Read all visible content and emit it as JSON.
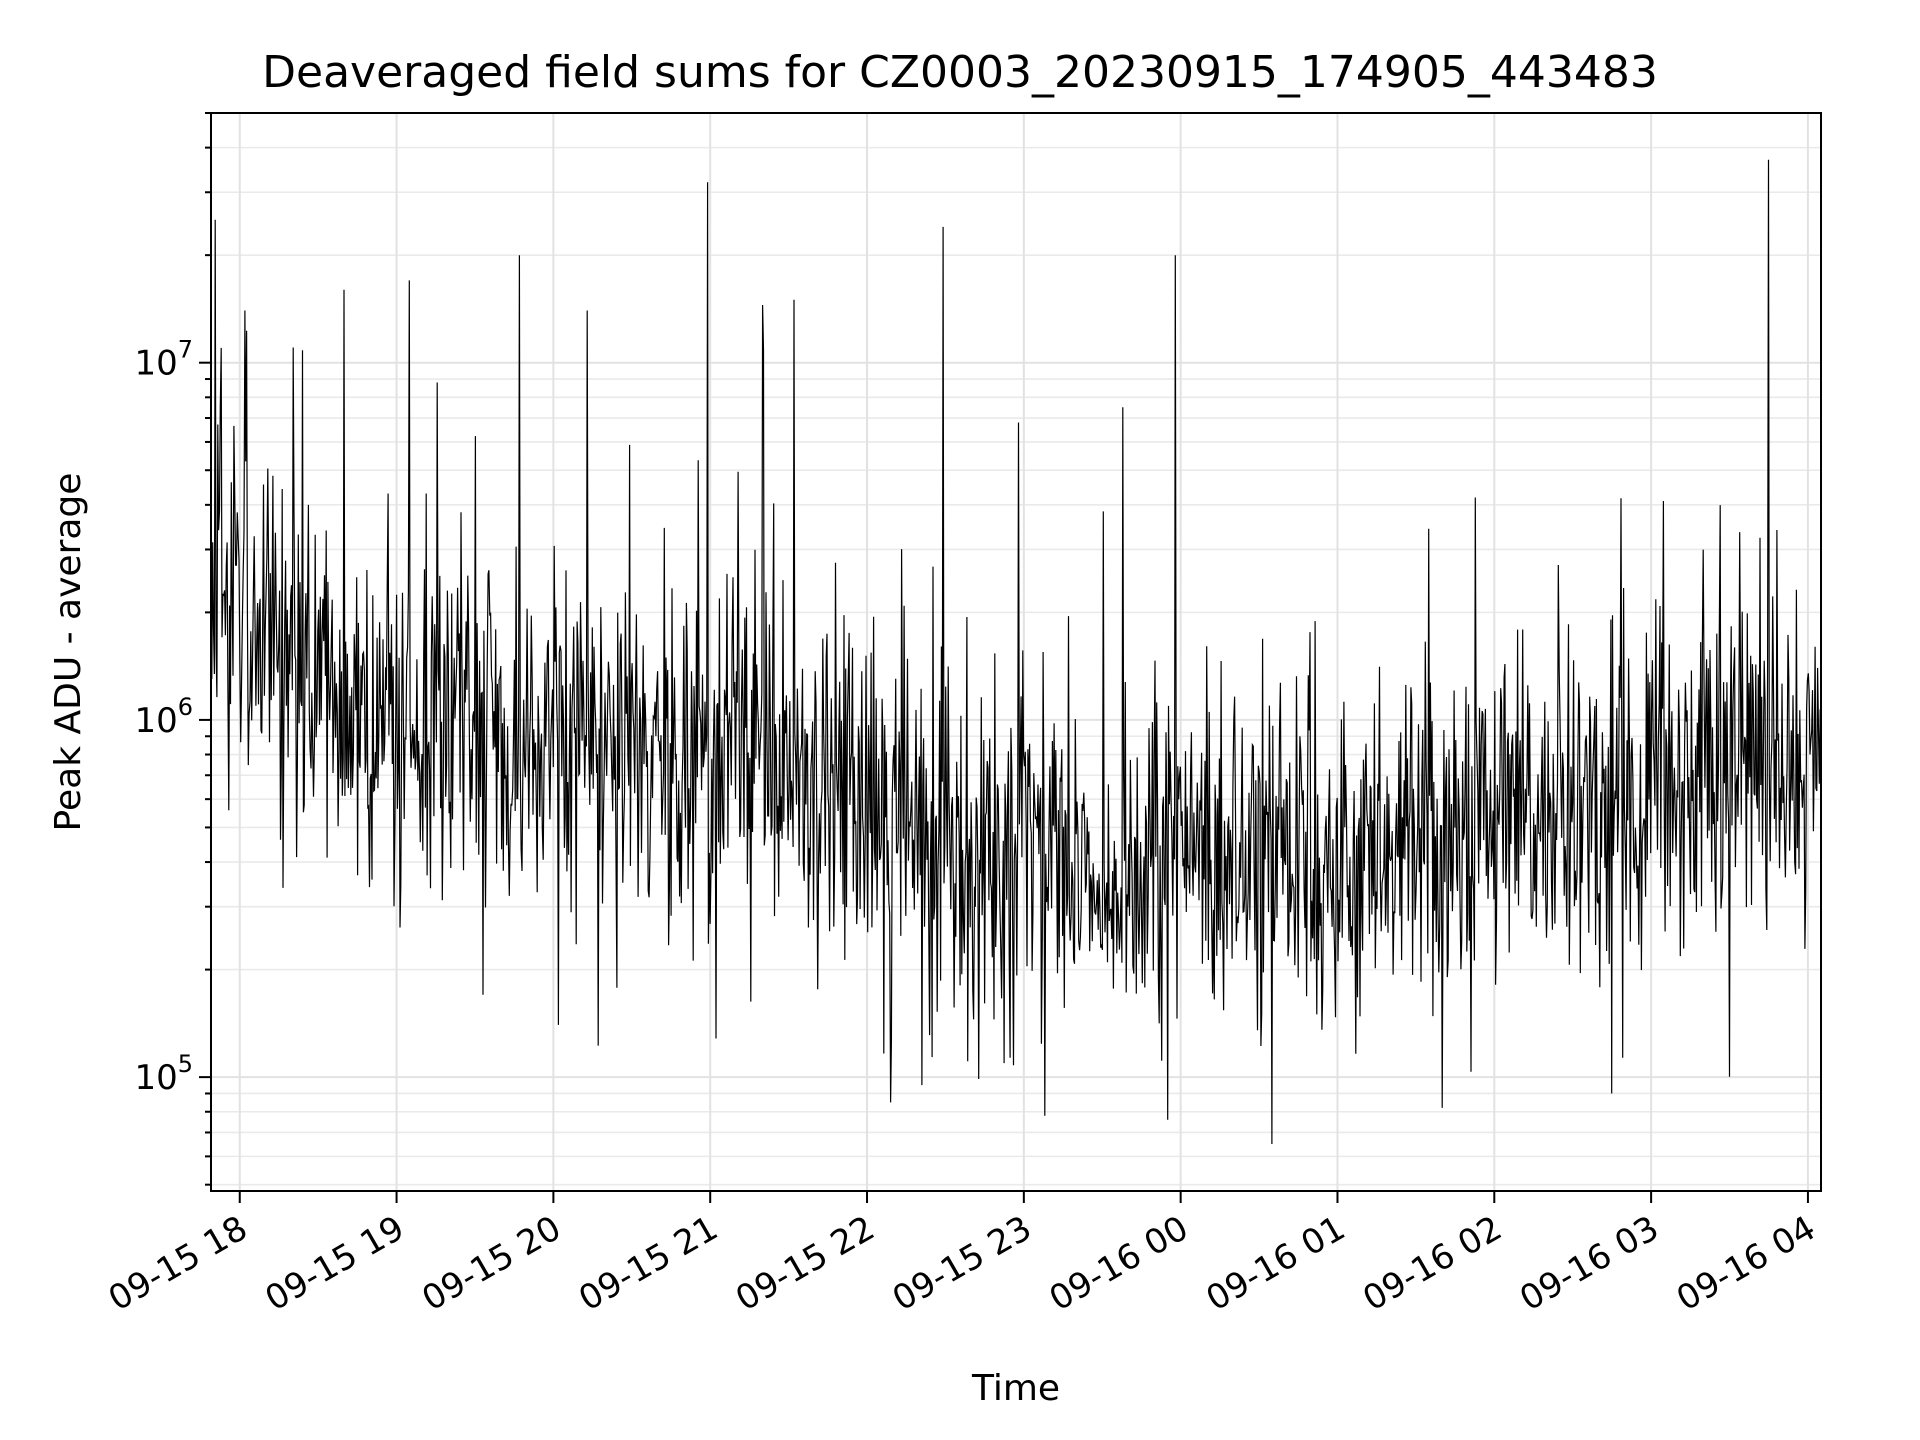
{
  "chart_data": {
    "type": "line",
    "title": "Deaveraged field sums for CZ0003_20230915_174905_443483",
    "xlabel": "Time",
    "ylabel": "Peak ADU - average",
    "yscale": "log",
    "grid": true,
    "xlim": [
      "2023-09-15 17:49",
      "2023-09-16 04:05"
    ],
    "ylim": [
      48000,
      50000000
    ],
    "xticks": [
      {
        "label": "09-15 18",
        "t": "2023-09-15 18:00"
      },
      {
        "label": "09-15 19",
        "t": "2023-09-15 19:00"
      },
      {
        "label": "09-15 20",
        "t": "2023-09-15 20:00"
      },
      {
        "label": "09-15 21",
        "t": "2023-09-15 21:00"
      },
      {
        "label": "09-15 22",
        "t": "2023-09-15 22:00"
      },
      {
        "label": "09-15 23",
        "t": "2023-09-15 23:00"
      },
      {
        "label": "09-16 00",
        "t": "2023-09-16 00:00"
      },
      {
        "label": "09-16 01",
        "t": "2023-09-16 01:00"
      },
      {
        "label": "09-16 02",
        "t": "2023-09-16 02:00"
      },
      {
        "label": "09-16 03",
        "t": "2023-09-16 03:00"
      },
      {
        "label": "09-16 04",
        "t": "2023-09-16 04:00"
      }
    ],
    "yticks": [
      {
        "base": "10",
        "exp": "5",
        "value": 100000
      },
      {
        "base": "10",
        "exp": "6",
        "value": 1000000
      },
      {
        "base": "10",
        "exp": "7",
        "value": 10000000
      }
    ],
    "trend": [
      {
        "t": "2023-09-15 17:49",
        "v": 2800000
      },
      {
        "t": "2023-09-15 18:10",
        "v": 1600000
      },
      {
        "t": "2023-09-15 18:45",
        "v": 1150000
      },
      {
        "t": "2023-09-15 19:30",
        "v": 950000
      },
      {
        "t": "2023-09-15 20:30",
        "v": 780000
      },
      {
        "t": "2023-09-15 21:30",
        "v": 680000
      },
      {
        "t": "2023-09-15 22:30",
        "v": 480000
      },
      {
        "t": "2023-09-15 23:30",
        "v": 380000
      },
      {
        "t": "2023-09-16 00:30",
        "v": 400000
      },
      {
        "t": "2023-09-16 01:30",
        "v": 440000
      },
      {
        "t": "2023-09-16 02:15",
        "v": 520000
      },
      {
        "t": "2023-09-16 03:00",
        "v": 620000
      },
      {
        "t": "2023-09-16 03:30",
        "v": 800000
      },
      {
        "t": "2023-09-16 04:05",
        "v": 750000
      }
    ],
    "peaks": [
      {
        "t": "2023-09-15 17:53",
        "v": 11000000
      },
      {
        "t": "2023-09-15 18:02",
        "v": 14000000
      },
      {
        "t": "2023-09-15 18:40",
        "v": 16000000
      },
      {
        "t": "2023-09-15 19:05",
        "v": 17000000
      },
      {
        "t": "2023-09-15 19:47",
        "v": 20000000
      },
      {
        "t": "2023-09-15 20:13",
        "v": 14000000
      },
      {
        "t": "2023-09-15 20:59",
        "v": 32000000
      },
      {
        "t": "2023-09-15 21:20",
        "v": 14500000
      },
      {
        "t": "2023-09-15 21:32",
        "v": 15000000
      },
      {
        "t": "2023-09-15 22:29",
        "v": 24000000
      },
      {
        "t": "2023-09-15 22:58",
        "v": 6800000
      },
      {
        "t": "2023-09-15 23:38",
        "v": 7500000
      },
      {
        "t": "2023-09-15 23:58",
        "v": 20000000
      },
      {
        "t": "2023-09-16 03:45",
        "v": 37000000
      }
    ],
    "dips": [
      {
        "t": "2023-09-15 19:33",
        "v": 170000
      },
      {
        "t": "2023-09-15 20:02",
        "v": 140000
      },
      {
        "t": "2023-09-15 22:21",
        "v": 95000
      },
      {
        "t": "2023-09-15 23:08",
        "v": 78000
      },
      {
        "t": "2023-09-15 23:55",
        "v": 76000
      },
      {
        "t": "2023-09-16 00:35",
        "v": 65000
      },
      {
        "t": "2023-09-16 01:40",
        "v": 82000
      },
      {
        "t": "2023-09-16 02:45",
        "v": 90000
      }
    ]
  }
}
